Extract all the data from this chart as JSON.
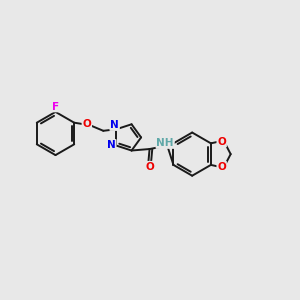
{
  "bg_color": "#e8e8e8",
  "bond_color": "#1a1a1a",
  "N_color": "#0000ee",
  "O_color": "#ee0000",
  "F_color": "#ee00ee",
  "H_color": "#5fa8a8",
  "bond_width": 1.4,
  "figsize": [
    3.0,
    3.0
  ],
  "dpi": 100,
  "xlim": [
    0,
    10
  ],
  "ylim": [
    2,
    8
  ]
}
